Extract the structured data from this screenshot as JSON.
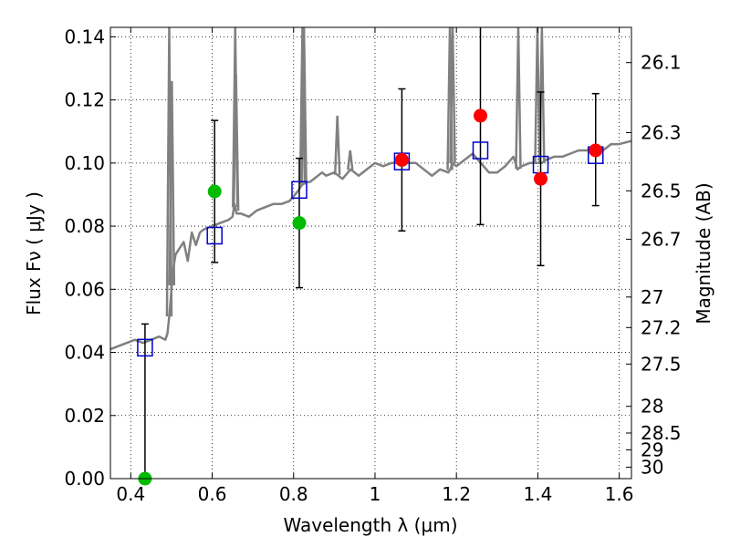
{
  "chart_data": {
    "type": "scatter",
    "xlabel": "Wavelength  λ (μm)",
    "ylabel": "Flux  Fν  ( μJy )",
    "y2label": "Magnitude (AB)",
    "xlim": [
      0.35,
      1.63
    ],
    "ylim": [
      0.0,
      0.143
    ],
    "x_ticks": [
      "0.4",
      "0.6",
      "0.8",
      "1",
      "1.2",
      "1.4",
      "1.6"
    ],
    "x_tick_values": [
      0.4,
      0.6,
      0.8,
      1.0,
      1.2,
      1.4,
      1.6
    ],
    "y_ticks": [
      "0.00",
      "0.02",
      "0.04",
      "0.06",
      "0.08",
      "0.10",
      "0.12",
      "0.14"
    ],
    "y_tick_values": [
      0.0,
      0.02,
      0.04,
      0.06,
      0.08,
      0.1,
      0.12,
      0.14
    ],
    "mag_ticks": [
      "26.1",
      "26.3",
      "26.5",
      "26.7",
      "27",
      "27.2",
      "27.5",
      "28",
      "28.5",
      "29",
      "30"
    ],
    "mag_tick_values": [
      26.1,
      26.3,
      26.5,
      26.7,
      27.0,
      27.2,
      27.5,
      28.0,
      28.5,
      29.0,
      30.0
    ],
    "grid": true,
    "colors": {
      "model": "#808080",
      "observed": "#ff0000",
      "observed_alt": "#00bb00",
      "model_bands": "#0000cc",
      "errorbar": "#000000"
    },
    "series": [
      {
        "kind": "model_spectrum",
        "x": [
          0.35,
          0.37,
          0.39,
          0.41,
          0.43,
          0.45,
          0.47,
          0.485,
          0.49,
          0.495,
          0.5,
          0.505,
          0.51,
          0.52,
          0.53,
          0.54,
          0.55,
          0.56,
          0.57,
          0.58,
          0.6,
          0.62,
          0.64,
          0.65,
          0.655,
          0.66,
          0.67,
          0.69,
          0.71,
          0.73,
          0.75,
          0.77,
          0.79,
          0.81,
          0.82,
          0.83,
          0.84,
          0.85,
          0.86,
          0.87,
          0.88,
          0.9,
          0.92,
          0.94,
          0.96,
          0.98,
          1.0,
          1.02,
          1.04,
          1.06,
          1.08,
          1.1,
          1.12,
          1.14,
          1.16,
          1.18,
          1.185,
          1.19,
          1.2,
          1.22,
          1.24,
          1.26,
          1.28,
          1.3,
          1.32,
          1.34,
          1.35,
          1.36,
          1.38,
          1.4,
          1.41,
          1.42,
          1.44,
          1.46,
          1.48,
          1.5,
          1.52,
          1.54,
          1.56,
          1.58,
          1.6,
          1.63
        ],
        "y": [
          0.041,
          0.042,
          0.043,
          0.044,
          0.043,
          0.044,
          0.045,
          0.044,
          0.046,
          0.052,
          0.06,
          0.067,
          0.071,
          0.073,
          0.075,
          0.069,
          0.078,
          0.074,
          0.078,
          0.079,
          0.08,
          0.081,
          0.082,
          0.083,
          0.087,
          0.084,
          0.084,
          0.083,
          0.085,
          0.086,
          0.087,
          0.087,
          0.088,
          0.091,
          0.093,
          0.094,
          0.094,
          0.095,
          0.096,
          0.097,
          0.096,
          0.097,
          0.095,
          0.098,
          0.096,
          0.098,
          0.1,
          0.099,
          0.1,
          0.1,
          0.1,
          0.1,
          0.098,
          0.096,
          0.098,
          0.097,
          0.098,
          0.1,
          0.099,
          0.101,
          0.103,
          0.1,
          0.097,
          0.097,
          0.099,
          0.102,
          0.098,
          0.099,
          0.1,
          0.1,
          0.1,
          0.101,
          0.102,
          0.102,
          0.103,
          0.104,
          0.104,
          0.105,
          0.104,
          0.106,
          0.106,
          0.107
        ]
      },
      {
        "kind": "emission_lines",
        "x": [
          0.4945,
          0.5009,
          0.6566,
          0.6585,
          0.8218,
          0.8255,
          0.9075,
          0.939,
          1.184,
          1.1907,
          1.352,
          1.399,
          1.41
        ],
        "y": [
          0.143,
          0.126,
          0.143,
          0.128,
          0.143,
          0.143,
          0.115,
          0.104,
          0.143,
          0.143,
          0.143,
          0.143,
          0.143
        ]
      },
      {
        "kind": "observed_points",
        "x": [
          0.435,
          0.606,
          0.814,
          1.066,
          1.259,
          1.407,
          1.542
        ],
        "y": [
          0.0,
          0.091,
          0.081,
          0.101,
          0.115,
          0.095,
          0.104
        ],
        "colors": [
          "#00bb00",
          "#00bb00",
          "#00bb00",
          "#ff0000",
          "#ff0000",
          "#ff0000",
          "#ff0000"
        ]
      },
      {
        "kind": "model_bands",
        "x": [
          0.435,
          0.606,
          0.814,
          1.066,
          1.259,
          1.407,
          1.542
        ],
        "y": [
          0.0415,
          0.077,
          0.0915,
          0.1005,
          0.104,
          0.0995,
          0.1025
        ]
      },
      {
        "kind": "error_bars",
        "x": [
          0.435,
          0.606,
          0.814,
          1.066,
          1.259,
          1.407,
          1.542
        ],
        "y_low": [
          0.0,
          0.0685,
          0.0605,
          0.0785,
          0.0805,
          0.0675,
          0.0865
        ],
        "y_high": [
          0.049,
          0.1135,
          0.1015,
          0.1235,
          0.143,
          0.1225,
          0.122
        ]
      }
    ]
  }
}
